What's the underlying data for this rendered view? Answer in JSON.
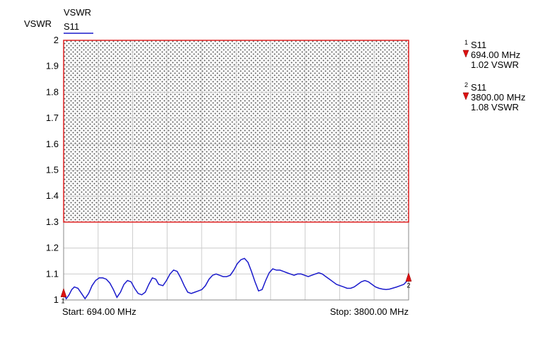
{
  "chart_data": {
    "type": "line",
    "title": "VSWR",
    "ylabel": "VSWR",
    "x_unit": "MHz",
    "x_range": [
      694,
      3800
    ],
    "ylim": [
      1,
      2
    ],
    "y_ticks": [
      "1",
      "1.1",
      "1.2",
      "1.3",
      "1.4",
      "1.5",
      "1.6",
      "1.7",
      "1.8",
      "1.9",
      "2"
    ],
    "grid": true,
    "start_label": "Start: 694.00 MHz",
    "stop_label": "Stop: 3800.00 MHz",
    "limit": {
      "value": 1.3,
      "color": "#e02020"
    },
    "series": [
      {
        "name": "S11",
        "color": "#1a1acc",
        "x": [
          694,
          718,
          743,
          767,
          791,
          823,
          855,
          887,
          919,
          950,
          982,
          1014,
          1046,
          1078,
          1110,
          1142,
          1174,
          1206,
          1237,
          1269,
          1301,
          1333,
          1365,
          1397,
          1429,
          1461,
          1493,
          1524,
          1550,
          1588,
          1620,
          1652,
          1684,
          1716,
          1748,
          1780,
          1811,
          1843,
          1875,
          1907,
          1939,
          1971,
          2003,
          2035,
          2067,
          2098,
          2130,
          2162,
          2194,
          2226,
          2258,
          2290,
          2322,
          2354,
          2385,
          2417,
          2449,
          2481,
          2513,
          2545,
          2577,
          2609,
          2641,
          2672,
          2704,
          2736,
          2768,
          2800,
          2832,
          2864,
          2896,
          2928,
          2959,
          2991,
          3023,
          3055,
          3087,
          3119,
          3151,
          3183,
          3215,
          3246,
          3278,
          3310,
          3342,
          3374,
          3406,
          3438,
          3470,
          3502,
          3534,
          3565,
          3597,
          3629,
          3661,
          3693,
          3725,
          3757,
          3800
        ],
        "values": [
          1.02,
          1.005,
          1.02,
          1.04,
          1.05,
          1.045,
          1.025,
          1.005,
          1.025,
          1.055,
          1.075,
          1.085,
          1.085,
          1.08,
          1.065,
          1.04,
          1.01,
          1.03,
          1.06,
          1.075,
          1.07,
          1.045,
          1.025,
          1.02,
          1.03,
          1.06,
          1.085,
          1.08,
          1.06,
          1.055,
          1.075,
          1.1,
          1.115,
          1.11,
          1.085,
          1.055,
          1.03,
          1.025,
          1.03,
          1.035,
          1.04,
          1.055,
          1.08,
          1.095,
          1.1,
          1.095,
          1.09,
          1.09,
          1.095,
          1.115,
          1.14,
          1.155,
          1.16,
          1.145,
          1.11,
          1.07,
          1.035,
          1.04,
          1.075,
          1.105,
          1.12,
          1.115,
          1.115,
          1.11,
          1.105,
          1.1,
          1.095,
          1.1,
          1.1,
          1.095,
          1.09,
          1.095,
          1.1,
          1.105,
          1.1,
          1.09,
          1.08,
          1.07,
          1.06,
          1.055,
          1.05,
          1.045,
          1.045,
          1.05,
          1.06,
          1.07,
          1.075,
          1.07,
          1.06,
          1.05,
          1.045,
          1.042,
          1.04,
          1.042,
          1.046,
          1.05,
          1.055,
          1.06,
          1.08
        ]
      }
    ],
    "markers": [
      {
        "id": "1",
        "trace": "S11",
        "freq": "694.00 MHz",
        "value": "1.02 VSWR",
        "x": 694,
        "y": 1.02
      },
      {
        "id": "2",
        "trace": "S11",
        "freq": "3800.00 MHz",
        "value": "1.08 VSWR",
        "x": 3800,
        "y": 1.08
      }
    ],
    "colors": {
      "plot_border": "#888888",
      "grid": "#cccccc",
      "hatch_dots": "#555555",
      "marker": "#dd1111"
    }
  }
}
